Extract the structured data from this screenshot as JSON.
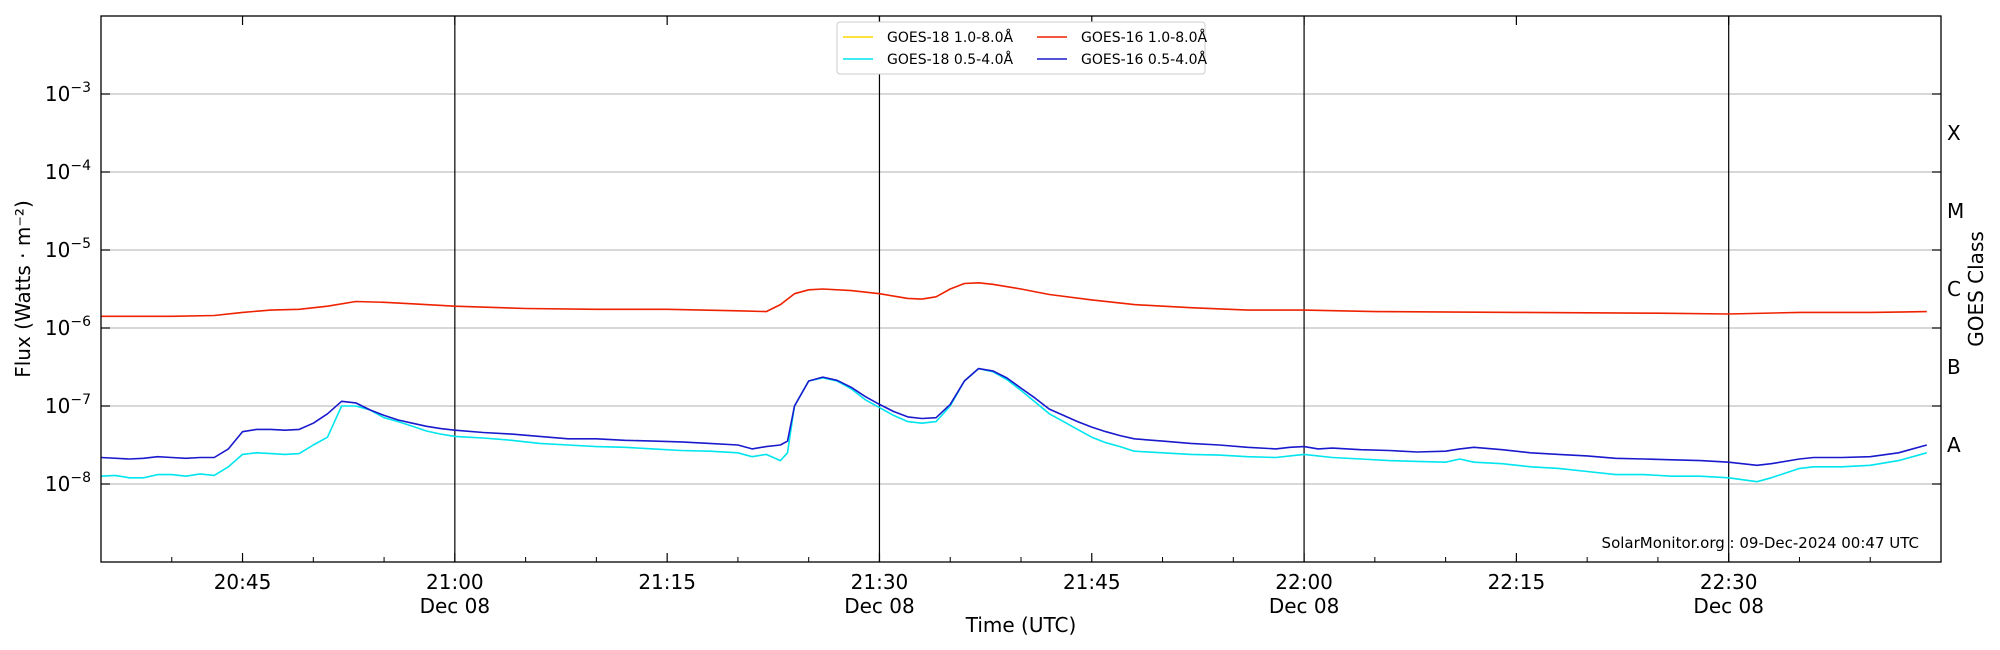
{
  "chart_data": {
    "type": "line",
    "ylabel": "Flux (Watts · m⁻²)",
    "xlabel": "Time (UTC)",
    "right_label": "GOES Class",
    "x_unit": "minutes of day (UTC), Dec 08 2024",
    "xlim": [
      1235,
      1365
    ],
    "ylim_log10": [
      -9,
      -2
    ],
    "y_scale": "log",
    "x_ticks": [
      {
        "x": 1245,
        "label": "20:45",
        "sub": ""
      },
      {
        "x": 1260,
        "label": "21:00",
        "sub": "Dec 08"
      },
      {
        "x": 1275,
        "label": "21:15",
        "sub": ""
      },
      {
        "x": 1290,
        "label": "21:30",
        "sub": "Dec 08"
      },
      {
        "x": 1305,
        "label": "21:45",
        "sub": ""
      },
      {
        "x": 1320,
        "label": "22:00",
        "sub": "Dec 08"
      },
      {
        "x": 1335,
        "label": "22:15",
        "sub": ""
      },
      {
        "x": 1350,
        "label": "22:30",
        "sub": "Dec 08"
      }
    ],
    "vlines": [
      1260,
      1290,
      1320,
      1350
    ],
    "y_ticks": [
      {
        "exp": -8,
        "label": "10",
        "sup": "−8"
      },
      {
        "exp": -7,
        "label": "10",
        "sup": "−7"
      },
      {
        "exp": -6,
        "label": "10",
        "sup": "−6"
      },
      {
        "exp": -5,
        "label": "10",
        "sup": "−5"
      },
      {
        "exp": -4,
        "label": "10",
        "sup": "−4"
      },
      {
        "exp": -3,
        "label": "10",
        "sup": "−3"
      }
    ],
    "classes": [
      {
        "label": "A",
        "exp": -7.5
      },
      {
        "label": "B",
        "exp": -6.5
      },
      {
        "label": "C",
        "exp": -5.5
      },
      {
        "label": "M",
        "exp": -4.5
      },
      {
        "label": "X",
        "exp": -3.5
      }
    ],
    "grid": true,
    "legend_position": "top-center",
    "legend": [
      {
        "name": "GOES-18 1.0-8.0Å",
        "color": "#ffd700"
      },
      {
        "name": "GOES-18 0.5-4.0Å",
        "color": "#00e5ee"
      },
      {
        "name": "GOES-16 1.0-8.0Å",
        "color": "#ee2200"
      },
      {
        "name": "GOES-16 0.5-4.0Å",
        "color": "#1a1acd"
      }
    ],
    "series": [
      {
        "name": "GOES-16 1.0-8.0Å",
        "color": "#ee2200",
        "points": [
          [
            1235,
            -5.85
          ],
          [
            1240,
            -5.85
          ],
          [
            1243,
            -5.84
          ],
          [
            1245,
            -5.8
          ],
          [
            1247,
            -5.77
          ],
          [
            1249,
            -5.76
          ],
          [
            1251,
            -5.72
          ],
          [
            1253,
            -5.66
          ],
          [
            1255,
            -5.67
          ],
          [
            1257,
            -5.69
          ],
          [
            1260,
            -5.72
          ],
          [
            1265,
            -5.75
          ],
          [
            1270,
            -5.76
          ],
          [
            1275,
            -5.76
          ],
          [
            1280,
            -5.78
          ],
          [
            1282,
            -5.79
          ],
          [
            1283,
            -5.7
          ],
          [
            1284,
            -5.56
          ],
          [
            1285,
            -5.51
          ],
          [
            1286,
            -5.5
          ],
          [
            1288,
            -5.52
          ],
          [
            1290,
            -5.56
          ],
          [
            1292,
            -5.62
          ],
          [
            1293,
            -5.63
          ],
          [
            1294,
            -5.6
          ],
          [
            1295,
            -5.5
          ],
          [
            1296,
            -5.43
          ],
          [
            1297,
            -5.42
          ],
          [
            1298,
            -5.44
          ],
          [
            1300,
            -5.5
          ],
          [
            1302,
            -5.57
          ],
          [
            1305,
            -5.64
          ],
          [
            1308,
            -5.7
          ],
          [
            1312,
            -5.74
          ],
          [
            1316,
            -5.77
          ],
          [
            1320,
            -5.77
          ],
          [
            1325,
            -5.79
          ],
          [
            1335,
            -5.8
          ],
          [
            1345,
            -5.81
          ],
          [
            1350,
            -5.82
          ],
          [
            1355,
            -5.8
          ],
          [
            1360,
            -5.8
          ],
          [
            1364,
            -5.79
          ]
        ]
      },
      {
        "name": "GOES-18 0.5-4.0Å",
        "color": "#00e5ee",
        "points": [
          [
            1235,
            -7.9
          ],
          [
            1236,
            -7.89
          ],
          [
            1237,
            -7.92
          ],
          [
            1238,
            -7.92
          ],
          [
            1239,
            -7.88
          ],
          [
            1240,
            -7.88
          ],
          [
            1241,
            -7.9
          ],
          [
            1242,
            -7.87
          ],
          [
            1243,
            -7.89
          ],
          [
            1244,
            -7.78
          ],
          [
            1245,
            -7.62
          ],
          [
            1246,
            -7.6
          ],
          [
            1247,
            -7.61
          ],
          [
            1248,
            -7.62
          ],
          [
            1249,
            -7.61
          ],
          [
            1250,
            -7.5
          ],
          [
            1251,
            -7.4
          ],
          [
            1252,
            -7.0
          ],
          [
            1253,
            -7.0
          ],
          [
            1254,
            -7.05
          ],
          [
            1255,
            -7.15
          ],
          [
            1256,
            -7.2
          ],
          [
            1257,
            -7.26
          ],
          [
            1258,
            -7.32
          ],
          [
            1259,
            -7.36
          ],
          [
            1260,
            -7.39
          ],
          [
            1262,
            -7.41
          ],
          [
            1264,
            -7.44
          ],
          [
            1266,
            -7.48
          ],
          [
            1268,
            -7.5
          ],
          [
            1270,
            -7.52
          ],
          [
            1272,
            -7.53
          ],
          [
            1274,
            -7.55
          ],
          [
            1276,
            -7.57
          ],
          [
            1278,
            -7.58
          ],
          [
            1280,
            -7.6
          ],
          [
            1281,
            -7.65
          ],
          [
            1282,
            -7.62
          ],
          [
            1283,
            -7.7
          ],
          [
            1283.5,
            -7.6
          ],
          [
            1284,
            -7.0
          ],
          [
            1285,
            -6.68
          ],
          [
            1286,
            -6.64
          ],
          [
            1287,
            -6.68
          ],
          [
            1288,
            -6.78
          ],
          [
            1289,
            -6.92
          ],
          [
            1290,
            -7.02
          ],
          [
            1291,
            -7.12
          ],
          [
            1292,
            -7.2
          ],
          [
            1293,
            -7.22
          ],
          [
            1294,
            -7.2
          ],
          [
            1295,
            -7.0
          ],
          [
            1296,
            -6.68
          ],
          [
            1297,
            -6.52
          ],
          [
            1298,
            -6.56
          ],
          [
            1299,
            -6.66
          ],
          [
            1300,
            -6.8
          ],
          [
            1301,
            -6.95
          ],
          [
            1302,
            -7.1
          ],
          [
            1303,
            -7.2
          ],
          [
            1304,
            -7.3
          ],
          [
            1305,
            -7.4
          ],
          [
            1306,
            -7.47
          ],
          [
            1307,
            -7.52
          ],
          [
            1308,
            -7.58
          ],
          [
            1310,
            -7.6
          ],
          [
            1312,
            -7.62
          ],
          [
            1314,
            -7.63
          ],
          [
            1316,
            -7.65
          ],
          [
            1318,
            -7.66
          ],
          [
            1319,
            -7.64
          ],
          [
            1320,
            -7.62
          ],
          [
            1322,
            -7.66
          ],
          [
            1324,
            -7.68
          ],
          [
            1326,
            -7.7
          ],
          [
            1328,
            -7.71
          ],
          [
            1330,
            -7.72
          ],
          [
            1331,
            -7.68
          ],
          [
            1332,
            -7.72
          ],
          [
            1334,
            -7.74
          ],
          [
            1336,
            -7.78
          ],
          [
            1338,
            -7.8
          ],
          [
            1340,
            -7.84
          ],
          [
            1342,
            -7.88
          ],
          [
            1344,
            -7.88
          ],
          [
            1346,
            -7.9
          ],
          [
            1348,
            -7.9
          ],
          [
            1350,
            -7.92
          ],
          [
            1352,
            -7.97
          ],
          [
            1353,
            -7.92
          ],
          [
            1355,
            -7.8
          ],
          [
            1356,
            -7.78
          ],
          [
            1358,
            -7.78
          ],
          [
            1360,
            -7.76
          ],
          [
            1362,
            -7.7
          ],
          [
            1364,
            -7.6
          ]
        ]
      },
      {
        "name": "GOES-16 0.5-4.0Å",
        "color": "#1a1acd",
        "points": [
          [
            1235,
            -7.66
          ],
          [
            1237,
            -7.68
          ],
          [
            1238,
            -7.67
          ],
          [
            1239,
            -7.65
          ],
          [
            1240,
            -7.66
          ],
          [
            1241,
            -7.67
          ],
          [
            1242,
            -7.66
          ],
          [
            1243,
            -7.66
          ],
          [
            1244,
            -7.55
          ],
          [
            1245,
            -7.33
          ],
          [
            1246,
            -7.3
          ],
          [
            1247,
            -7.3
          ],
          [
            1248,
            -7.31
          ],
          [
            1249,
            -7.3
          ],
          [
            1250,
            -7.22
          ],
          [
            1251,
            -7.1
          ],
          [
            1252,
            -6.94
          ],
          [
            1253,
            -6.96
          ],
          [
            1254,
            -7.05
          ],
          [
            1255,
            -7.12
          ],
          [
            1256,
            -7.18
          ],
          [
            1257,
            -7.22
          ],
          [
            1258,
            -7.26
          ],
          [
            1259,
            -7.29
          ],
          [
            1260,
            -7.31
          ],
          [
            1262,
            -7.34
          ],
          [
            1264,
            -7.36
          ],
          [
            1266,
            -7.39
          ],
          [
            1268,
            -7.42
          ],
          [
            1270,
            -7.42
          ],
          [
            1272,
            -7.44
          ],
          [
            1274,
            -7.45
          ],
          [
            1276,
            -7.46
          ],
          [
            1278,
            -7.48
          ],
          [
            1280,
            -7.5
          ],
          [
            1281,
            -7.55
          ],
          [
            1282,
            -7.52
          ],
          [
            1283,
            -7.5
          ],
          [
            1283.5,
            -7.45
          ],
          [
            1284,
            -7.0
          ],
          [
            1285,
            -6.68
          ],
          [
            1286,
            -6.63
          ],
          [
            1287,
            -6.67
          ],
          [
            1288,
            -6.76
          ],
          [
            1289,
            -6.88
          ],
          [
            1290,
            -6.98
          ],
          [
            1291,
            -7.07
          ],
          [
            1292,
            -7.14
          ],
          [
            1293,
            -7.16
          ],
          [
            1294,
            -7.15
          ],
          [
            1295,
            -6.98
          ],
          [
            1296,
            -6.68
          ],
          [
            1297,
            -6.52
          ],
          [
            1298,
            -6.55
          ],
          [
            1299,
            -6.64
          ],
          [
            1300,
            -6.77
          ],
          [
            1301,
            -6.9
          ],
          [
            1302,
            -7.04
          ],
          [
            1303,
            -7.12
          ],
          [
            1304,
            -7.2
          ],
          [
            1305,
            -7.27
          ],
          [
            1306,
            -7.33
          ],
          [
            1307,
            -7.38
          ],
          [
            1308,
            -7.42
          ],
          [
            1310,
            -7.45
          ],
          [
            1312,
            -7.48
          ],
          [
            1314,
            -7.5
          ],
          [
            1316,
            -7.53
          ],
          [
            1318,
            -7.55
          ],
          [
            1319,
            -7.53
          ],
          [
            1320,
            -7.52
          ],
          [
            1321,
            -7.55
          ],
          [
            1322,
            -7.54
          ],
          [
            1324,
            -7.56
          ],
          [
            1326,
            -7.57
          ],
          [
            1328,
            -7.59
          ],
          [
            1330,
            -7.58
          ],
          [
            1331,
            -7.55
          ],
          [
            1332,
            -7.53
          ],
          [
            1334,
            -7.56
          ],
          [
            1336,
            -7.6
          ],
          [
            1338,
            -7.62
          ],
          [
            1340,
            -7.64
          ],
          [
            1342,
            -7.67
          ],
          [
            1344,
            -7.68
          ],
          [
            1346,
            -7.69
          ],
          [
            1348,
            -7.7
          ],
          [
            1350,
            -7.72
          ],
          [
            1352,
            -7.76
          ],
          [
            1353,
            -7.74
          ],
          [
            1355,
            -7.68
          ],
          [
            1356,
            -7.66
          ],
          [
            1358,
            -7.66
          ],
          [
            1360,
            -7.65
          ],
          [
            1362,
            -7.6
          ],
          [
            1364,
            -7.5
          ]
        ]
      }
    ],
    "watermark": "SolarMonitor.org : 09-Dec-2024 00:47 UTC"
  }
}
